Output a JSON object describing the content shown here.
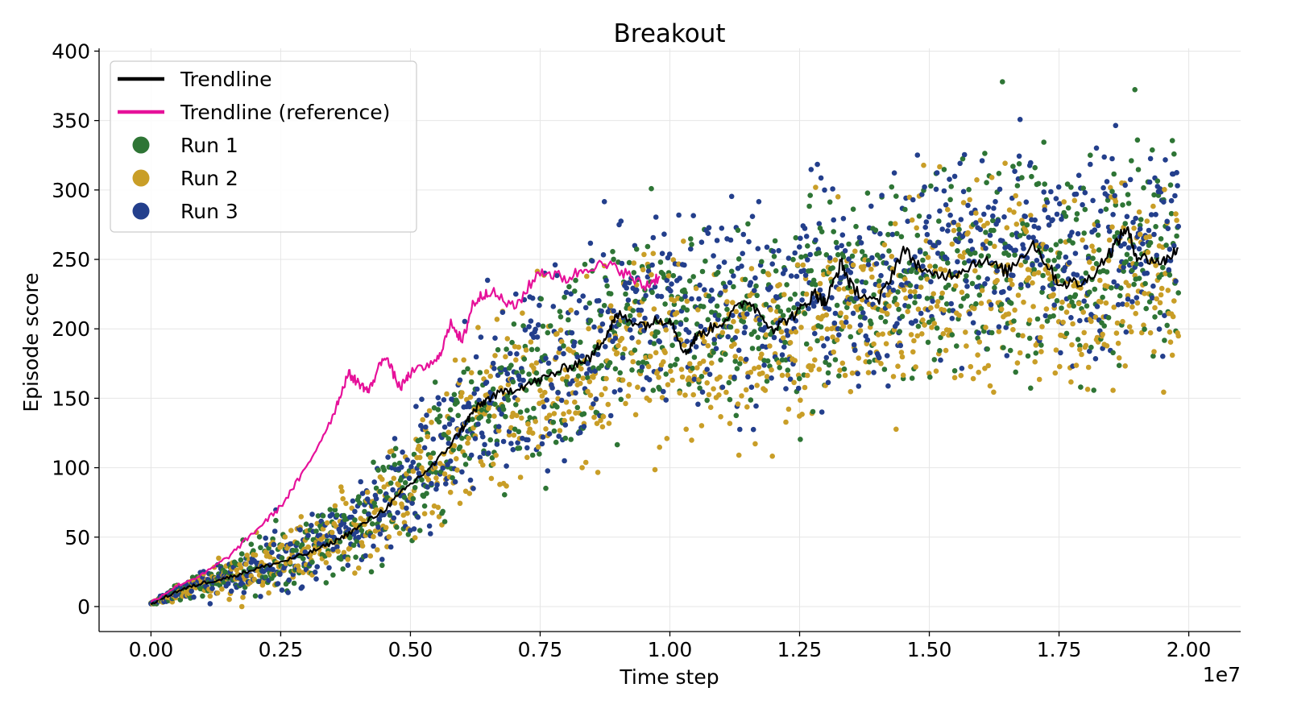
{
  "chart_data": {
    "type": "scatter",
    "title": "Breakout",
    "xlabel": "Time step",
    "ylabel": "Episode score",
    "x_offset_label": "1e7",
    "xlim": [
      -0.1,
      2.1
    ],
    "ylim": [
      -18,
      402
    ],
    "x_scale": 10000000.0,
    "x_ticks": [
      0,
      0.25,
      0.5,
      0.75,
      1.0,
      1.25,
      1.5,
      1.75,
      2.0
    ],
    "x_tick_labels": [
      "0.00",
      "0.25",
      "0.50",
      "0.75",
      "1.00",
      "1.25",
      "1.50",
      "1.75",
      "2.00"
    ],
    "y_ticks": [
      0,
      50,
      100,
      150,
      200,
      250,
      300,
      350,
      400
    ],
    "y_tick_labels": [
      "0",
      "50",
      "100",
      "150",
      "200",
      "250",
      "300",
      "350",
      "400"
    ],
    "grid": true,
    "legend_position": "top-left",
    "series": [
      {
        "name": "Trendline",
        "kind": "line",
        "color": "#000000",
        "x": [
          0,
          0.05,
          0.1,
          0.15,
          0.2,
          0.25,
          0.3,
          0.35,
          0.4,
          0.45,
          0.5,
          0.55,
          0.6,
          0.62,
          0.65,
          0.7,
          0.75,
          0.8,
          0.85,
          0.88,
          0.9,
          0.95,
          1.0,
          1.03,
          1.05,
          1.1,
          1.15,
          1.2,
          1.25,
          1.28,
          1.3,
          1.33,
          1.35,
          1.4,
          1.45,
          1.5,
          1.55,
          1.6,
          1.65,
          1.7,
          1.75,
          1.8,
          1.85,
          1.88,
          1.9,
          1.95,
          1.98
        ],
        "y": [
          2,
          11,
          17,
          21,
          27,
          32,
          38,
          46,
          57,
          70,
          88,
          104,
          128,
          140,
          150,
          157,
          163,
          172,
          180,
          198,
          210,
          203,
          208,
          182,
          194,
          205,
          221,
          200,
          213,
          226,
          218,
          248,
          230,
          218,
          257,
          238,
          240,
          250,
          241,
          262,
          233,
          233,
          256,
          273,
          252,
          248,
          258
        ]
      },
      {
        "name": "Trendline (reference)",
        "kind": "line",
        "color": "#e6119a",
        "x": [
          0,
          0.05,
          0.1,
          0.15,
          0.2,
          0.25,
          0.3,
          0.35,
          0.38,
          0.4,
          0.42,
          0.45,
          0.48,
          0.5,
          0.55,
          0.58,
          0.6,
          0.62,
          0.65,
          0.7,
          0.75,
          0.8,
          0.85,
          0.9,
          0.95,
          0.98
        ],
        "y": [
          3,
          15,
          23,
          36,
          54,
          72,
          100,
          137,
          168,
          161,
          155,
          182,
          157,
          168,
          176,
          205,
          190,
          218,
          228,
          215,
          242,
          236,
          246,
          244,
          230,
          238
        ]
      },
      {
        "name": "Run 1",
        "kind": "scatter",
        "color": "#2e7535"
      },
      {
        "name": "Run 2",
        "kind": "scatter",
        "color": "#c99e27"
      },
      {
        "name": "Run 3",
        "kind": "scatter",
        "color": "#233f8c"
      }
    ],
    "scatter_envelope": {
      "x": [
        0,
        0.1,
        0.2,
        0.3,
        0.4,
        0.5,
        0.6,
        0.7,
        0.8,
        0.9,
        1.0,
        1.1,
        1.2,
        1.3,
        1.4,
        1.5,
        1.6,
        1.7,
        1.8,
        1.9,
        1.98
      ],
      "mean": [
        2,
        17,
        27,
        38,
        57,
        88,
        130,
        157,
        170,
        200,
        205,
        205,
        202,
        225,
        225,
        238,
        245,
        255,
        235,
        260,
        255
      ],
      "spread": [
        1,
        8,
        18,
        22,
        30,
        38,
        48,
        52,
        58,
        62,
        62,
        62,
        62,
        64,
        64,
        66,
        66,
        66,
        66,
        66,
        62
      ]
    }
  }
}
